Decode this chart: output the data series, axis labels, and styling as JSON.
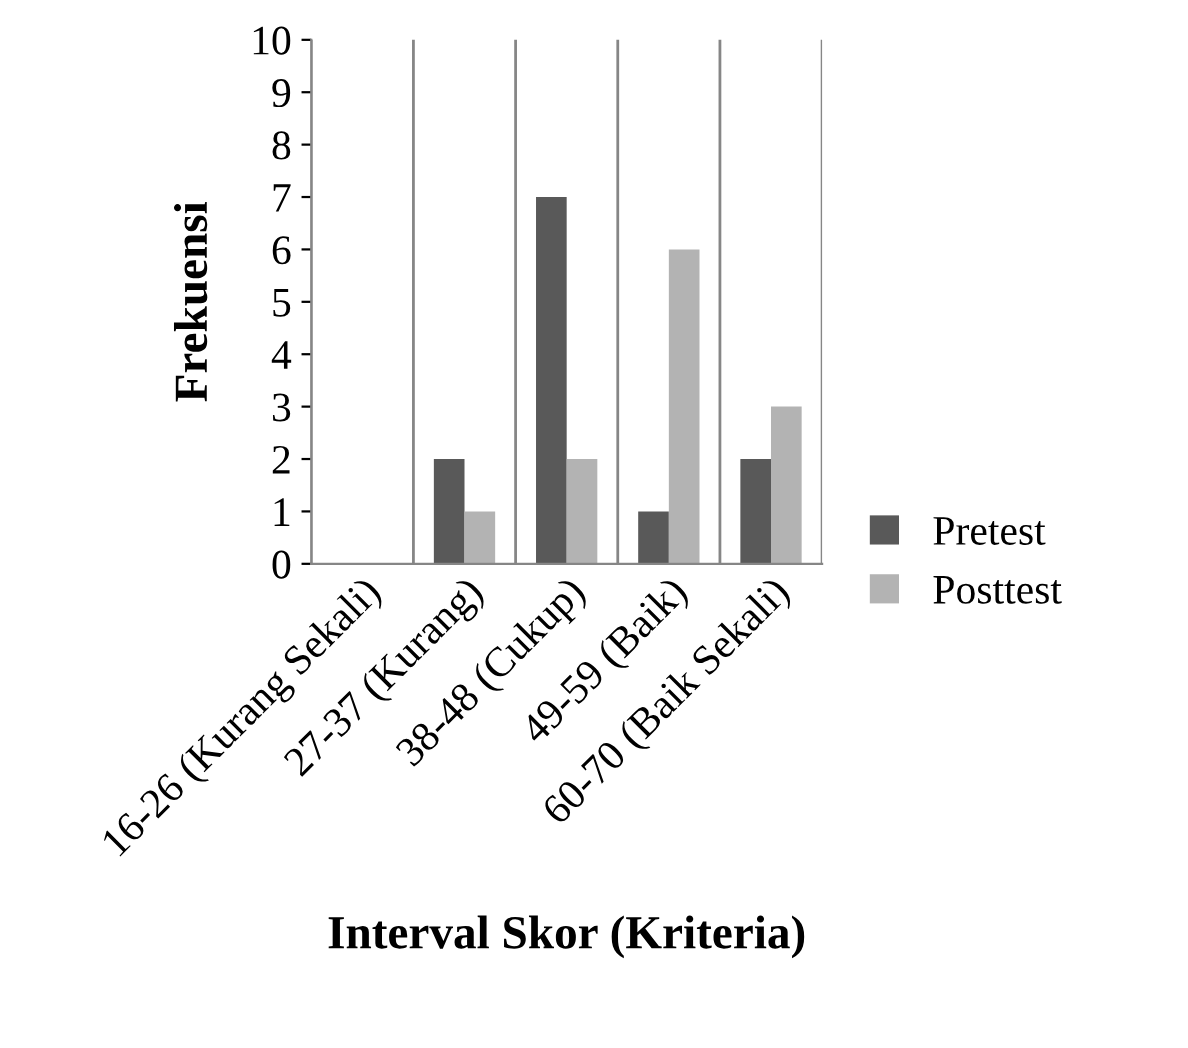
{
  "chart_data": {
    "type": "bar",
    "xlabel": "Interval Skor (Kriteria)",
    "ylabel": "Frekuensi",
    "categories": [
      "16-26 (Kurang Sekali)",
      "27-37 (Kurang)",
      "38-48 (Cukup)",
      "49-59 (Baik)",
      "60-70 (Baik Sekali)"
    ],
    "series": [
      {
        "name": "Pretest",
        "color": "#595959",
        "values": [
          0,
          2,
          7,
          1,
          2
        ]
      },
      {
        "name": "Posttest",
        "color": "#b3b3b3",
        "values": [
          0,
          1,
          2,
          6,
          3
        ]
      }
    ],
    "ylim": [
      0,
      10
    ],
    "yticks": [
      0,
      1,
      2,
      3,
      4,
      5,
      6,
      7,
      8,
      9,
      10
    ],
    "grid": "x",
    "legend": "right"
  }
}
